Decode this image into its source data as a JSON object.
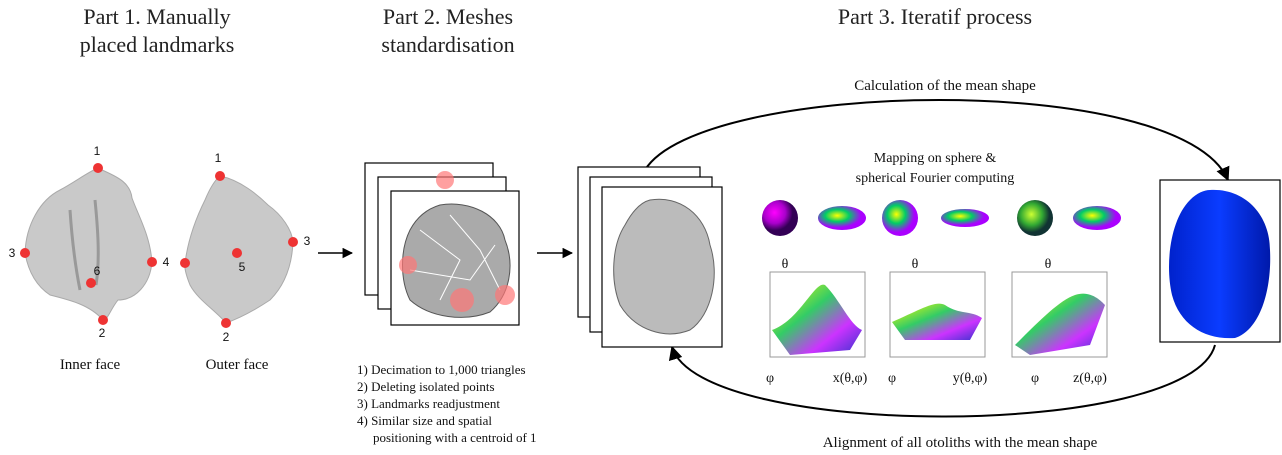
{
  "part1": {
    "title": [
      "Part 1. Manually",
      "placed landmarks"
    ],
    "inner_face": {
      "label": "Inner face",
      "landmarks": [
        "1",
        "3",
        "4",
        "6",
        "2"
      ]
    },
    "outer_face": {
      "label": "Outer face",
      "landmarks": [
        "1",
        "3",
        "5",
        "2"
      ]
    }
  },
  "part2": {
    "title": [
      "Part 2. Meshes",
      "standardisation"
    ],
    "steps": [
      [
        "1) Decimation to 1,000 triangles"
      ],
      [
        "2) Deleting isolated points"
      ],
      [
        "3) Landmarks readjustment"
      ],
      [
        "4) Similar size and spatial",
        "positioning with a centroid of 1"
      ]
    ]
  },
  "part3": {
    "title": "Part 3. Iteratif process",
    "top_label": "Calculation of the mean shape",
    "mapping_label": [
      "Mapping on sphere &",
      "spherical Fourier computing"
    ],
    "plots": [
      {
        "theta": "θ",
        "phi": "φ",
        "function": "x(θ,φ)"
      },
      {
        "theta": "θ",
        "phi": "φ",
        "function": "y(θ,φ)"
      },
      {
        "theta": "θ",
        "phi": "φ",
        "function": "z(θ,φ)"
      }
    ],
    "bottom_label": "Alignment of all otoliths with the mean shape"
  }
}
